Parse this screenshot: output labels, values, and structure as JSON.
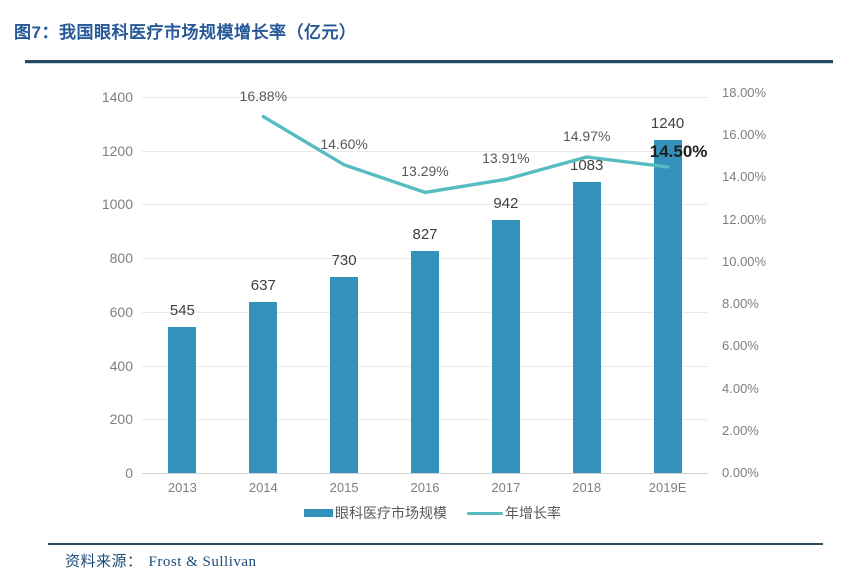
{
  "page": {
    "background": "#FFFFFF"
  },
  "header": {
    "title": "图7：我国眼科医疗市场规模增长率（亿元）",
    "title_color": "#275897",
    "rule_color": "#264A5E"
  },
  "footer": {
    "source_label": "资料来源：",
    "source_value": "Frost & Sullivan",
    "text_color": "#1C4C77",
    "rule_color": "#264A5E"
  },
  "chart_data": {
    "type": "combo-bar-line",
    "categories": [
      "2013",
      "2014",
      "2015",
      "2016",
      "2017",
      "2018",
      "2019E"
    ],
    "series": [
      {
        "name": "眼科医疗市场规模",
        "type": "bar",
        "axis": "left",
        "values": [
          545,
          637,
          730,
          827,
          942,
          1083,
          1240
        ],
        "labels": [
          "545",
          "637",
          "730",
          "827",
          "942",
          "1083",
          "1240"
        ],
        "color": "#3392BA"
      },
      {
        "name": "年增长率",
        "type": "line",
        "axis": "right",
        "values": [
          null,
          16.88,
          14.6,
          13.29,
          13.91,
          14.97,
          14.5
        ],
        "labels": [
          null,
          "16.88%",
          "14.60%",
          "13.29%",
          "13.91%",
          "14.97%",
          "14.50%"
        ],
        "color": "#56BCC1",
        "highlight_last_label": true
      }
    ],
    "left_axis": {
      "min": 0,
      "max": 1400,
      "step": 200,
      "tick_labels": [
        "0",
        "200",
        "400",
        "600",
        "800",
        "1000",
        "1200",
        "1400"
      ]
    },
    "right_axis": {
      "min": 0,
      "max": 18,
      "step": 2,
      "tick_labels": [
        "0.00%",
        "2.00%",
        "4.00%",
        "6.00%",
        "8.00%",
        "10.00%",
        "12.00%",
        "14.00%",
        "16.00%",
        "18.00%"
      ]
    },
    "grid": true,
    "gridline_color": "#E9E9E9",
    "legend_position": "bottom-center"
  }
}
